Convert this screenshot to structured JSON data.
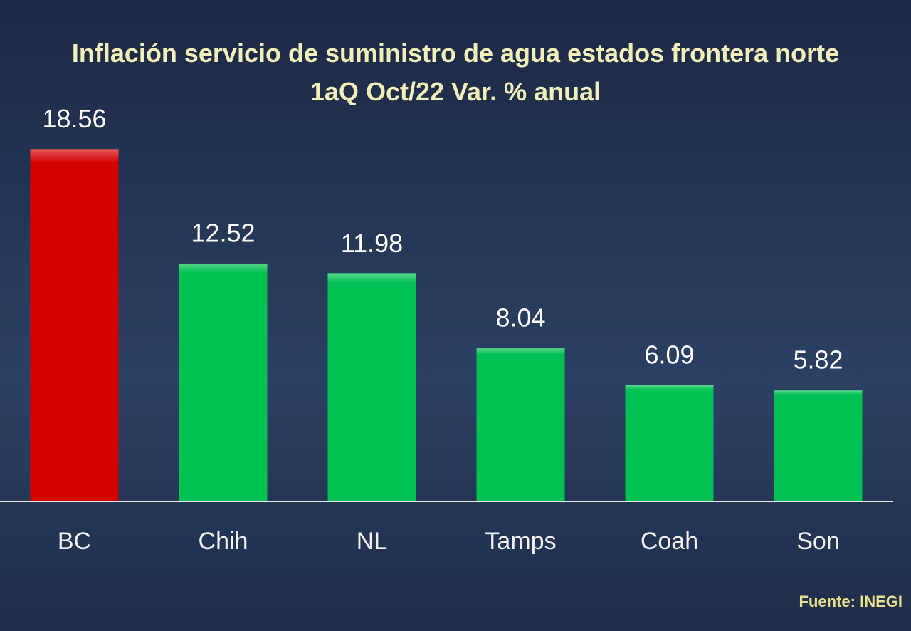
{
  "chart_data": {
    "type": "bar",
    "title": "Inflación servicio de suministro de agua estados frontera norte 1aQ Oct/22 Var. % anual",
    "categories": [
      "BC",
      "Chih",
      "NL",
      "Tamps",
      "Coah",
      "Son"
    ],
    "values": [
      18.56,
      12.52,
      11.98,
      8.04,
      6.09,
      5.82
    ],
    "colors": [
      "#d40000",
      "#00c152",
      "#00c152",
      "#00c152",
      "#00c152",
      "#00c152"
    ],
    "source": "Fuente: INEGI"
  }
}
